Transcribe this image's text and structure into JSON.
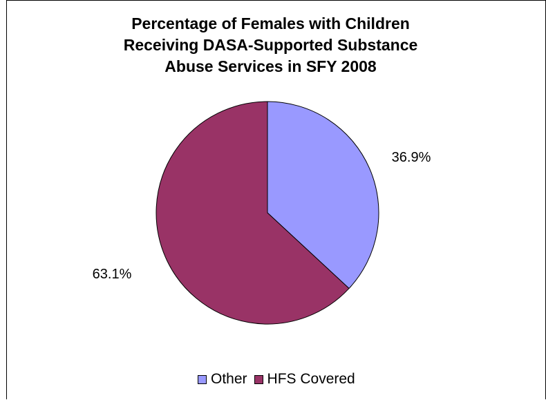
{
  "chart_data": {
    "type": "pie",
    "title_lines": [
      "Percentage of Females with Children",
      "Receiving DASA-Supported Substance",
      "Abuse Services in SFY 2008"
    ],
    "slices": [
      {
        "name": "Other",
        "value": 36.9,
        "label": "36.9%",
        "color": "#9999ff"
      },
      {
        "name": "HFS Covered",
        "value": 63.1,
        "label": "63.1%",
        "color": "#993366"
      }
    ],
    "legend_position": "bottom"
  }
}
